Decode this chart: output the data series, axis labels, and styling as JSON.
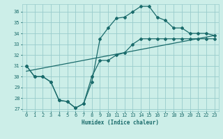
{
  "title": "",
  "xlabel": "Humidex (Indice chaleur)",
  "bg_color": "#cceee8",
  "grid_color": "#99cccc",
  "line_color": "#1a6b6b",
  "xlim": [
    -0.5,
    23.5
  ],
  "ylim": [
    26.8,
    36.7
  ],
  "yticks": [
    27,
    28,
    29,
    30,
    31,
    32,
    33,
    34,
    35,
    36
  ],
  "xticks": [
    0,
    1,
    2,
    3,
    4,
    5,
    6,
    7,
    8,
    9,
    10,
    11,
    12,
    13,
    14,
    15,
    16,
    17,
    18,
    19,
    20,
    21,
    22,
    23
  ],
  "line1_x": [
    0,
    1,
    2,
    3,
    4,
    5,
    6,
    7,
    8,
    9,
    10,
    11,
    12,
    13,
    14,
    15,
    16,
    17,
    18,
    19,
    20,
    21,
    22,
    23
  ],
  "line1_y": [
    31.0,
    30.0,
    30.0,
    29.5,
    27.8,
    27.7,
    27.1,
    27.5,
    29.5,
    33.5,
    34.5,
    35.4,
    35.5,
    36.0,
    36.5,
    36.5,
    35.5,
    35.2,
    34.5,
    34.5,
    34.0,
    34.0,
    34.0,
    33.8
  ],
  "line2_x": [
    0,
    1,
    2,
    3,
    4,
    5,
    6,
    7,
    8,
    9,
    10,
    11,
    12,
    13,
    14,
    15,
    16,
    17,
    18,
    19,
    20,
    21,
    22,
    23
  ],
  "line2_y": [
    31.0,
    30.0,
    30.0,
    29.5,
    27.8,
    27.7,
    27.1,
    27.5,
    30.0,
    31.5,
    31.5,
    32.0,
    32.2,
    33.0,
    33.5,
    33.5,
    33.5,
    33.5,
    33.5,
    33.5,
    33.5,
    33.5,
    33.5,
    33.5
  ],
  "line3_x": [
    0,
    23
  ],
  "line3_y": [
    30.5,
    33.8
  ]
}
